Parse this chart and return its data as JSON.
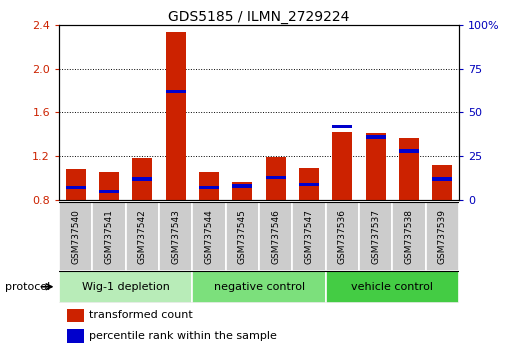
{
  "title": "GDS5185 / ILMN_2729224",
  "samples": [
    "GSM737540",
    "GSM737541",
    "GSM737542",
    "GSM737543",
    "GSM737544",
    "GSM737545",
    "GSM737546",
    "GSM737547",
    "GSM737536",
    "GSM737537",
    "GSM737538",
    "GSM737539"
  ],
  "red_values": [
    1.08,
    1.06,
    1.18,
    2.33,
    1.06,
    0.96,
    1.19,
    1.09,
    1.42,
    1.41,
    1.37,
    1.12
  ],
  "blue_values_pct": [
    7,
    5,
    12,
    62,
    7,
    8,
    13,
    9,
    42,
    36,
    28,
    12
  ],
  "ylim_left": [
    0.8,
    2.4
  ],
  "ylim_right": [
    0,
    100
  ],
  "yticks_left": [
    0.8,
    1.2,
    1.6,
    2.0,
    2.4
  ],
  "yticks_right": [
    0,
    25,
    50,
    75,
    100
  ],
  "groups": [
    {
      "label": "Wig-1 depletion",
      "indices": [
        0,
        1,
        2,
        3
      ],
      "color": "#b8ecb8"
    },
    {
      "label": "negative control",
      "indices": [
        4,
        5,
        6,
        7
      ],
      "color": "#7ce07c"
    },
    {
      "label": "vehicle control",
      "indices": [
        8,
        9,
        10,
        11
      ],
      "color": "#44cc44"
    }
  ],
  "bar_width": 0.6,
  "red_color": "#cc2200",
  "blue_color": "#0000cc",
  "grid_color": "#000000",
  "bg_color": "#ffffff",
  "sample_box_color": "#cccccc",
  "ylabel_left_color": "#cc2200",
  "ylabel_right_color": "#0000bb",
  "protocol_label": "protocol",
  "legend1": "transformed count",
  "legend2": "percentile rank within the sample"
}
